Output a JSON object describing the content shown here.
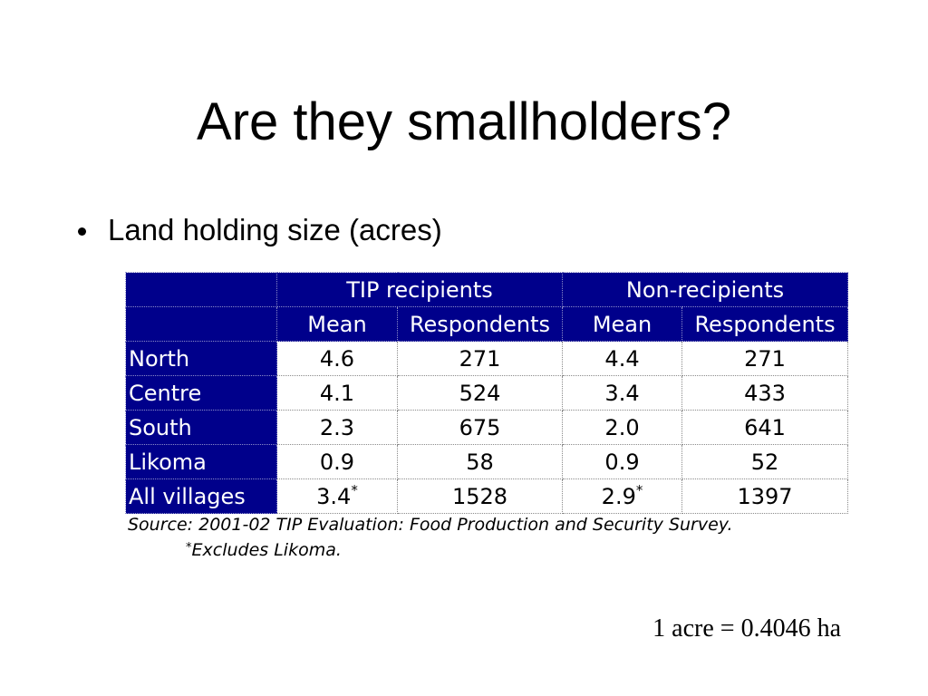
{
  "slide": {
    "title": "Are they smallholders?",
    "bullet": "Land holding size (acres)",
    "conversion_note": "1 acre = 0.4046 ha"
  },
  "table": {
    "groups": [
      "TIP recipients",
      "Non-recipients"
    ],
    "subheaders": [
      "Mean",
      "Respondents",
      "Mean",
      "Respondents"
    ],
    "rows": [
      {
        "region": "North",
        "tip_mean": "4.6",
        "tip_mean_mark": "",
        "tip_respondents": "271",
        "non_mean": "4.4",
        "non_mean_mark": "",
        "non_respondents": "271"
      },
      {
        "region": "Centre",
        "tip_mean": "4.1",
        "tip_mean_mark": "",
        "tip_respondents": "524",
        "non_mean": "3.4",
        "non_mean_mark": "",
        "non_respondents": "433"
      },
      {
        "region": "South",
        "tip_mean": "2.3",
        "tip_mean_mark": "",
        "tip_respondents": "675",
        "non_mean": "2.0",
        "non_mean_mark": "",
        "non_respondents": "641"
      },
      {
        "region": "Likoma",
        "tip_mean": "0.9",
        "tip_mean_mark": "",
        "tip_respondents": "58",
        "non_mean": "0.9",
        "non_mean_mark": "",
        "non_respondents": "52"
      },
      {
        "region": "All villages",
        "tip_mean": "3.4",
        "tip_mean_mark": "*",
        "tip_respondents": "1528",
        "non_mean": "2.9",
        "non_mean_mark": "*",
        "non_respondents": "1397"
      }
    ],
    "source": "Source: 2001-02 TIP Evaluation:  Food Production and Security Survey.",
    "footnote_mark": "*",
    "footnote": "Excludes Likoma."
  },
  "colors": {
    "header_bg": "#00008b",
    "header_text": "#ffffff",
    "cell_bg": "#ffffff"
  }
}
